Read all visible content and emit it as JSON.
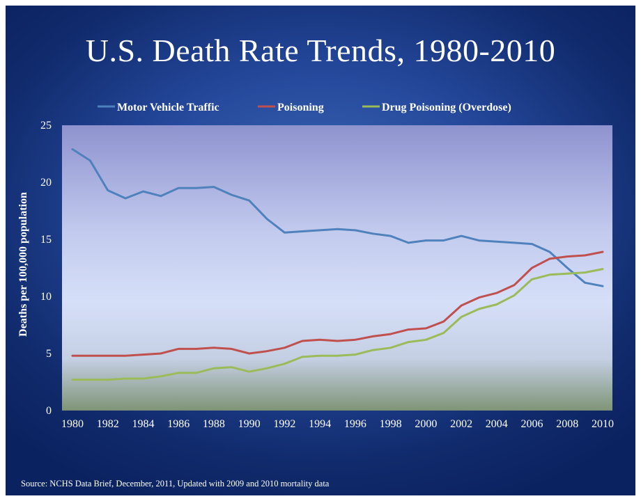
{
  "slide": {
    "title": "U.S. Death Rate Trends, 1980-2010",
    "source": "Source:  NCHS Data Brief, December, 2011, Updated with 2009 and 2010 mortality data"
  },
  "chart_data": {
    "type": "line",
    "title": "U.S. Death Rate Trends, 1980-2010",
    "xlabel": "",
    "ylabel": "Deaths per 100,000 population",
    "ylim": [
      0,
      25
    ],
    "yticks": [
      0,
      5,
      10,
      15,
      20,
      25
    ],
    "xlim": [
      1980,
      2010
    ],
    "xticks": [
      1980,
      1982,
      1984,
      1986,
      1988,
      1990,
      1992,
      1994,
      1996,
      1998,
      2000,
      2002,
      2004,
      2006,
      2008,
      2010
    ],
    "grid": false,
    "legend_position": "top",
    "x": [
      1980,
      1981,
      1982,
      1983,
      1984,
      1985,
      1986,
      1987,
      1988,
      1989,
      1990,
      1991,
      1992,
      1993,
      1994,
      1995,
      1996,
      1997,
      1998,
      1999,
      2000,
      2001,
      2002,
      2003,
      2004,
      2005,
      2006,
      2007,
      2008,
      2009,
      2010
    ],
    "series": [
      {
        "name": "Motor Vehicle Traffic",
        "color": "#4f81bd",
        "values": [
          22.9,
          21.9,
          19.3,
          18.6,
          19.2,
          18.8,
          19.5,
          19.5,
          19.6,
          18.9,
          18.4,
          16.8,
          15.6,
          15.7,
          15.8,
          15.9,
          15.8,
          15.5,
          15.3,
          14.7,
          14.9,
          14.9,
          15.3,
          14.9,
          14.8,
          14.7,
          14.6,
          13.9,
          12.5,
          11.2,
          10.9
        ]
      },
      {
        "name": "Poisoning",
        "color": "#c0504d",
        "values": [
          4.8,
          4.8,
          4.8,
          4.8,
          4.9,
          5.0,
          5.4,
          5.4,
          5.5,
          5.4,
          5.0,
          5.2,
          5.5,
          6.1,
          6.2,
          6.1,
          6.2,
          6.5,
          6.7,
          7.1,
          7.2,
          7.8,
          9.2,
          9.9,
          10.3,
          11.0,
          12.5,
          13.3,
          13.5,
          13.6,
          13.9
        ]
      },
      {
        "name": "Drug Poisoning (Overdose)",
        "color": "#9bbb59",
        "values": [
          2.7,
          2.7,
          2.7,
          2.8,
          2.8,
          3.0,
          3.3,
          3.3,
          3.7,
          3.8,
          3.4,
          3.7,
          4.1,
          4.7,
          4.8,
          4.8,
          4.9,
          5.3,
          5.5,
          6.0,
          6.2,
          6.8,
          8.2,
          8.9,
          9.3,
          10.1,
          11.5,
          11.9,
          12.0,
          12.1,
          12.4
        ]
      }
    ]
  }
}
